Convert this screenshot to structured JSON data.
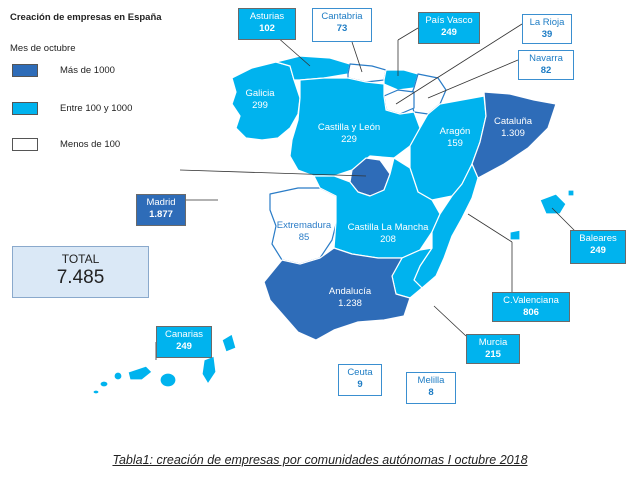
{
  "title": "Creación de empresas en España",
  "legend": {
    "subtitle": "Mes de octubre",
    "items": [
      {
        "label": "Más de 1000",
        "color": "#2e6cb8"
      },
      {
        "label": "Entre 100 y 1000",
        "color": "#00b3ee"
      },
      {
        "label": "Menos de 100",
        "color": "#ffffff"
      }
    ]
  },
  "total": {
    "label": "TOTAL",
    "value": "7.485"
  },
  "regions": {
    "asturias": {
      "name": "Asturias",
      "value": "102"
    },
    "cantabria": {
      "name": "Cantabria",
      "value": "73"
    },
    "pais_vasco": {
      "name": "País Vasco",
      "value": "249"
    },
    "la_rioja": {
      "name": "La Rioja",
      "value": "39"
    },
    "navarra": {
      "name": "Navarra",
      "value": "82"
    },
    "galicia": {
      "name": "Galicia",
      "value": "299"
    },
    "castilla_leon": {
      "name": "Castilla y León",
      "value": "229"
    },
    "aragon": {
      "name": "Aragón",
      "value": "159"
    },
    "cataluna": {
      "name": "Cataluña",
      "value": "1.309"
    },
    "madrid": {
      "name": "Madrid",
      "value": "1.877"
    },
    "extremadura": {
      "name": "Extremadura",
      "value": "85"
    },
    "castilla_mancha": {
      "name": "Castilla La Mancha",
      "value": "208"
    },
    "baleares": {
      "name": "Baleares",
      "value": "249"
    },
    "andalucia": {
      "name": "Andalucía",
      "value": "1.238"
    },
    "valenciana": {
      "name": "C.Valenciana",
      "value": "806"
    },
    "murcia": {
      "name": "Murcia",
      "value": "215"
    },
    "canarias": {
      "name": "Canarias",
      "value": "249"
    },
    "ceuta": {
      "name": "Ceuta",
      "value": "9"
    },
    "melilla": {
      "name": "Melilla",
      "value": "8"
    }
  },
  "caption": "Tabla1: creación de empresas por comunidades autónomas I octubre 2018"
}
